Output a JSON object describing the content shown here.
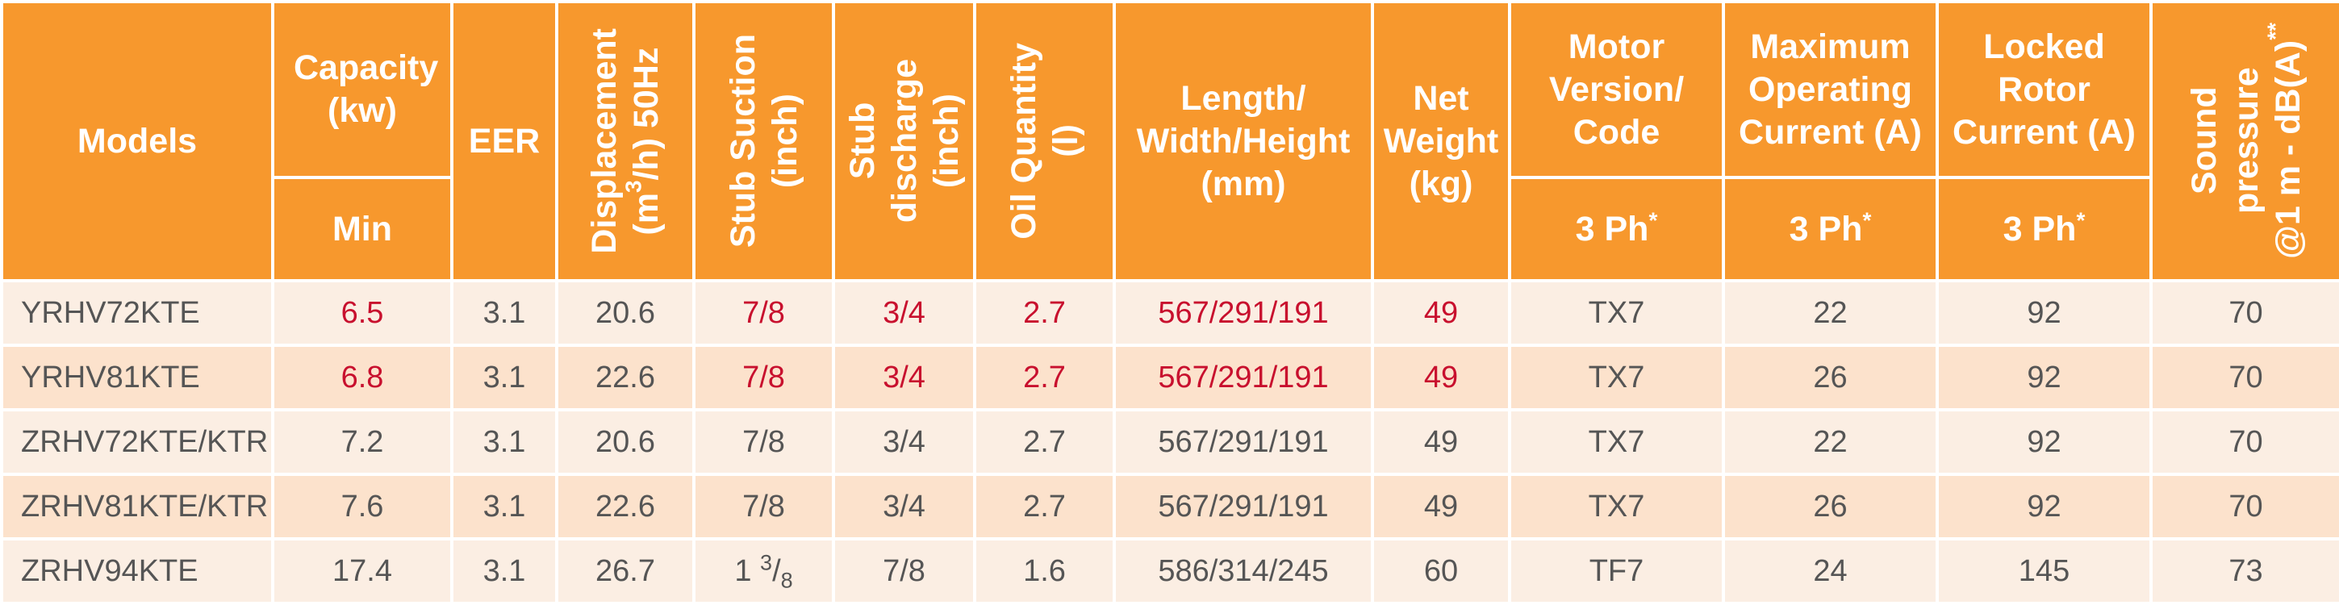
{
  "headers": {
    "models": "Models",
    "capacity": "Capacity (kw)",
    "capacity_sub": "Min",
    "eer": "EER",
    "displacement_line1": "Displacement",
    "displacement_line2_pre": "(m",
    "displacement_line2_sup": "3",
    "displacement_line2_post": "/h) 50Hz",
    "stub_suction_line1": "Stub Suction",
    "stub_suction_line2": "(inch)",
    "stub_discharge_line1": "Stub",
    "stub_discharge_line2": "discharge",
    "stub_discharge_line3": "(inch)",
    "oil_line1": "Oil Quantity",
    "oil_line2": "(l)",
    "dimensions_line1": "Length/",
    "dimensions_line2": "Width/Height",
    "dimensions_line3": "(mm)",
    "weight_line1": "Net",
    "weight_line2": "Weight",
    "weight_line3": "(kg)",
    "motor_line1": "Motor",
    "motor_line2": "Version/",
    "motor_line3": "Code",
    "motor_sub": "3 Ph",
    "max_current_line1": "Maximum",
    "max_current_line2": "Operating",
    "max_current_line3": "Current (A)",
    "max_current_sub": "3 Ph",
    "locked_line1": "Locked",
    "locked_line2": "Rotor",
    "locked_line3": "Current (A)",
    "locked_sub": "3 Ph",
    "sound_line1": "Sound",
    "sound_line2": "pressure",
    "sound_line3": "@1 m - dB(A)",
    "sound_sup": "**",
    "asterisk": "*"
  },
  "rows": [
    {
      "model": "YRHV72KTE",
      "capacity": "6.5",
      "eer": "3.1",
      "displacement": "20.6",
      "stub_suction": "7/8",
      "stub_discharge": "3/4",
      "oil": "2.7",
      "dimensions": "567/291/191",
      "weight": "49",
      "motor": "TX7",
      "max_current": "22",
      "locked_current": "92",
      "sound": "70"
    },
    {
      "model": "YRHV81KTE",
      "capacity": "6.8",
      "eer": "3.1",
      "displacement": "22.6",
      "stub_suction": "7/8",
      "stub_discharge": "3/4",
      "oil": "2.7",
      "dimensions": "567/291/191",
      "weight": "49",
      "motor": "TX7",
      "max_current": "26",
      "locked_current": "92",
      "sound": "70"
    },
    {
      "model": "ZRHV72KTE/KTR",
      "capacity": "7.2",
      "eer": "3.1",
      "displacement": "20.6",
      "stub_suction": "7/8",
      "stub_discharge": "3/4",
      "oil": "2.7",
      "dimensions": "567/291/191",
      "weight": "49",
      "motor": "TX7",
      "max_current": "22",
      "locked_current": "92",
      "sound": "70"
    },
    {
      "model": "ZRHV81KTE/KTR",
      "capacity": "7.6",
      "eer": "3.1",
      "displacement": "22.6",
      "stub_suction": "7/8",
      "stub_discharge": "3/4",
      "oil": "2.7",
      "dimensions": "567/291/191",
      "weight": "49",
      "motor": "TX7",
      "max_current": "26",
      "locked_current": "92",
      "sound": "70"
    },
    {
      "model": "ZRHV94KTE",
      "capacity": "17.4",
      "eer": "3.1",
      "displacement": "26.7",
      "stub_suction_whole": "1",
      "stub_suction_num": "3",
      "stub_suction_den": "8",
      "stub_discharge": "7/8",
      "oil": "1.6",
      "dimensions": "586/314/245",
      "weight": "60",
      "motor": "TF7",
      "max_current": "24",
      "locked_current": "145",
      "sound": "73"
    }
  ],
  "colors": {
    "header_bg": "#f7982d",
    "row_light": "#fbeee3",
    "row_dark": "#fce2cc",
    "highlight_text": "#c8102e",
    "body_text": "#555555"
  }
}
